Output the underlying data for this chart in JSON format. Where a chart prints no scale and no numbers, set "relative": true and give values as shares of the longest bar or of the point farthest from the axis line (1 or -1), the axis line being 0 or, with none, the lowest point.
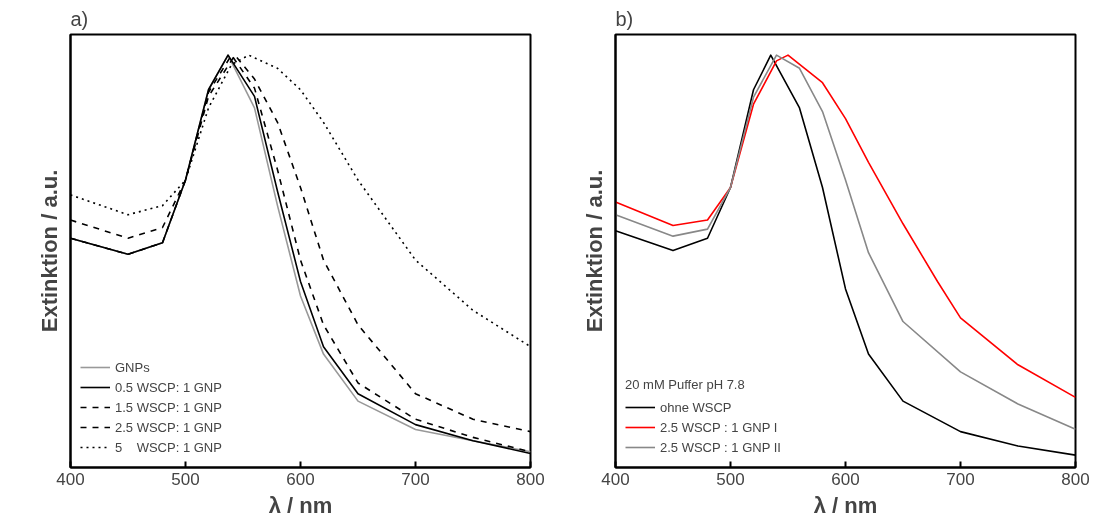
{
  "chart_data": [
    {
      "type": "line",
      "title": "a)",
      "xlabel": "λ / nm",
      "ylabel": "Extinktion / a.u.",
      "relative": true,
      "xlim": [
        400,
        800
      ],
      "xticks": [
        400,
        500,
        600,
        700,
        800
      ],
      "grid": false,
      "legend": "bottom left",
      "tick_labels": "x",
      "x": [
        400,
        450,
        480,
        500,
        520,
        537,
        560,
        580,
        600,
        620,
        650,
        700,
        750,
        800
      ],
      "series": [
        {
          "name": "GNPs",
          "color": "#999999",
          "line_style": "solid",
          "values": [
            0.556,
            0.517,
            0.545,
            0.697,
            0.916,
            1.0,
            0.872,
            0.635,
            0.416,
            0.275,
            0.161,
            0.092,
            0.065,
            0.038
          ]
        },
        {
          "name": "0.5 WSCP: 1 GNP",
          "color": "#000000",
          "line_style": "solid",
          "values": [
            0.556,
            0.517,
            0.545,
            0.697,
            0.916,
            1.0,
            0.9,
            0.67,
            0.451,
            0.293,
            0.179,
            0.104,
            0.065,
            0.034
          ]
        },
        {
          "name": "1.5 WSCP: 1 GNP",
          "color": "#000000",
          "line_style": "dashed",
          "x": [
            400,
            450,
            480,
            500,
            520,
            540,
            560,
            580,
            600,
            620,
            650,
            700,
            750,
            800
          ],
          "values": [
            0.556,
            0.517,
            0.545,
            0.697,
            0.91,
            1.0,
            0.92,
            0.722,
            0.503,
            0.346,
            0.205,
            0.117,
            0.073,
            0.038
          ]
        },
        {
          "name": "2.5 WSCP: 1 GNP",
          "color": "#000000",
          "line_style": "dashed",
          "x": [
            400,
            450,
            480,
            500,
            520,
            543,
            560,
            580,
            600,
            620,
            650,
            700,
            750,
            800
          ],
          "values": [
            0.6,
            0.556,
            0.582,
            0.697,
            0.9,
            1.0,
            0.942,
            0.837,
            0.679,
            0.503,
            0.346,
            0.179,
            0.117,
            0.087
          ]
        },
        {
          "name": "5    WSCP: 1 GNP",
          "color": "#000000",
          "line_style": "dotted",
          "x": [
            400,
            450,
            480,
            500,
            520,
            540,
            555,
            580,
            600,
            620,
            650,
            700,
            750,
            800
          ],
          "values": [
            0.661,
            0.613,
            0.635,
            0.697,
            0.872,
            0.977,
            1.0,
            0.968,
            0.916,
            0.837,
            0.697,
            0.503,
            0.381,
            0.293
          ]
        }
      ]
    },
    {
      "type": "line",
      "title": "b)",
      "xlabel": "λ / nm",
      "ylabel": "Extinktion / a.u.",
      "relative": true,
      "xlim": [
        400,
        800
      ],
      "xticks": [
        400,
        500,
        600,
        700,
        800
      ],
      "grid": false,
      "legend": "bottom left",
      "tick_labels": "x",
      "legend_title": "20 mM Puffer pH 7.8",
      "series": [
        {
          "name": "ohne WSCP",
          "color": "#000000",
          "x": [
            400,
            450,
            480,
            500,
            520,
            535,
            560,
            580,
            600,
            620,
            650,
            700,
            750,
            800
          ],
          "values": [
            0.574,
            0.526,
            0.556,
            0.679,
            0.916,
            1.0,
            0.872,
            0.679,
            0.433,
            0.275,
            0.161,
            0.087,
            0.052,
            0.03
          ]
        },
        {
          "name": "2.5 WSCP : 1 GNP I",
          "color": "#ff0000",
          "x": [
            400,
            450,
            480,
            500,
            520,
            540,
            550,
            580,
            600,
            620,
            650,
            680,
            700,
            750,
            800
          ],
          "values": [
            0.644,
            0.587,
            0.6,
            0.679,
            0.881,
            0.986,
            1.0,
            0.933,
            0.846,
            0.74,
            0.591,
            0.451,
            0.363,
            0.249,
            0.17
          ]
        },
        {
          "name": "2.5 WSCP : 1 GNP II",
          "color": "#888888",
          "x": [
            400,
            450,
            480,
            500,
            520,
            540,
            560,
            580,
            600,
            620,
            650,
            700,
            750,
            800
          ],
          "values": [
            0.613,
            0.561,
            0.578,
            0.679,
            0.898,
            1.0,
            0.968,
            0.863,
            0.697,
            0.521,
            0.354,
            0.232,
            0.154,
            0.093
          ]
        }
      ]
    }
  ]
}
